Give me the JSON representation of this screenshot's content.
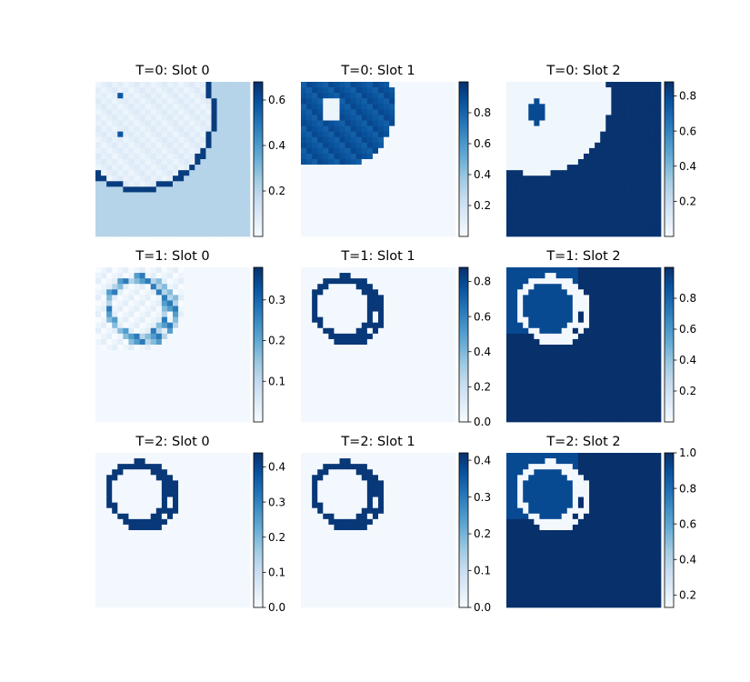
{
  "chart_data": [
    {
      "type": "heatmap",
      "title": "T=0: Slot 0",
      "pattern": "t0s0",
      "cmap": "Blues",
      "range": [
        0.0,
        0.68
      ],
      "colorbar": {
        "ticks": [
          0.2,
          0.4,
          0.6
        ],
        "tick_labels": [
          "0.2",
          "0.4",
          "0.6"
        ]
      }
    },
    {
      "type": "heatmap",
      "title": "T=0: Slot 1",
      "pattern": "t0s1",
      "cmap": "Blues",
      "range": [
        0.0,
        1.0
      ],
      "colorbar": {
        "ticks": [
          0.2,
          0.4,
          0.6,
          0.8
        ],
        "tick_labels": [
          "0.2",
          "0.4",
          "0.6",
          "0.8"
        ]
      }
    },
    {
      "type": "heatmap",
      "title": "T=0: Slot 2",
      "pattern": "t0s2",
      "cmap": "Blues",
      "range": [
        0.0,
        0.88
      ],
      "colorbar": {
        "ticks": [
          0.2,
          0.4,
          0.6,
          0.8
        ],
        "tick_labels": [
          "0.2",
          "0.4",
          "0.6",
          "0.8"
        ]
      }
    },
    {
      "type": "heatmap",
      "title": "T=1: Slot 0",
      "pattern": "t1s0",
      "cmap": "Blues",
      "range": [
        0.0,
        0.38
      ],
      "colorbar": {
        "ticks": [
          0.1,
          0.2,
          0.3
        ],
        "tick_labels": [
          "0.1",
          "0.2",
          "0.3"
        ]
      }
    },
    {
      "type": "heatmap",
      "title": "T=1: Slot 1",
      "pattern": "rings",
      "cmap": "Blues",
      "range": [
        0.0,
        0.88
      ],
      "colorbar": {
        "ticks": [
          0.0,
          0.2,
          0.4,
          0.6,
          0.8
        ],
        "tick_labels": [
          "0.0",
          "0.2",
          "0.4",
          "0.6",
          "0.8"
        ]
      }
    },
    {
      "type": "heatmap",
      "title": "T=1: Slot 2",
      "pattern": "inverse",
      "cmap": "Blues",
      "range": [
        0.0,
        1.0
      ],
      "colorbar": {
        "ticks": [
          0.2,
          0.4,
          0.6,
          0.8
        ],
        "tick_labels": [
          "0.2",
          "0.4",
          "0.6",
          "0.8"
        ]
      }
    },
    {
      "type": "heatmap",
      "title": "T=2: Slot 0",
      "pattern": "rings",
      "cmap": "Blues",
      "range": [
        0.0,
        0.44
      ],
      "colorbar": {
        "ticks": [
          0.0,
          0.1,
          0.2,
          0.3,
          0.4
        ],
        "tick_labels": [
          "0.0",
          "0.1",
          "0.2",
          "0.3",
          "0.4"
        ]
      }
    },
    {
      "type": "heatmap",
      "title": "T=2: Slot 1",
      "pattern": "rings",
      "cmap": "Blues",
      "range": [
        0.0,
        0.42
      ],
      "colorbar": {
        "ticks": [
          0.0,
          0.1,
          0.2,
          0.3,
          0.4
        ],
        "tick_labels": [
          "0.0",
          "0.1",
          "0.2",
          "0.3",
          "0.4"
        ]
      }
    },
    {
      "type": "heatmap",
      "title": "T=2: Slot 2",
      "pattern": "inverse",
      "cmap": "Blues",
      "range": [
        0.13,
        1.0
      ],
      "colorbar": {
        "ticks": [
          0.2,
          0.4,
          0.6,
          0.8,
          1.0
        ],
        "tick_labels": [
          "0.2",
          "0.4",
          "0.6",
          "0.8",
          "1.0"
        ]
      }
    }
  ]
}
